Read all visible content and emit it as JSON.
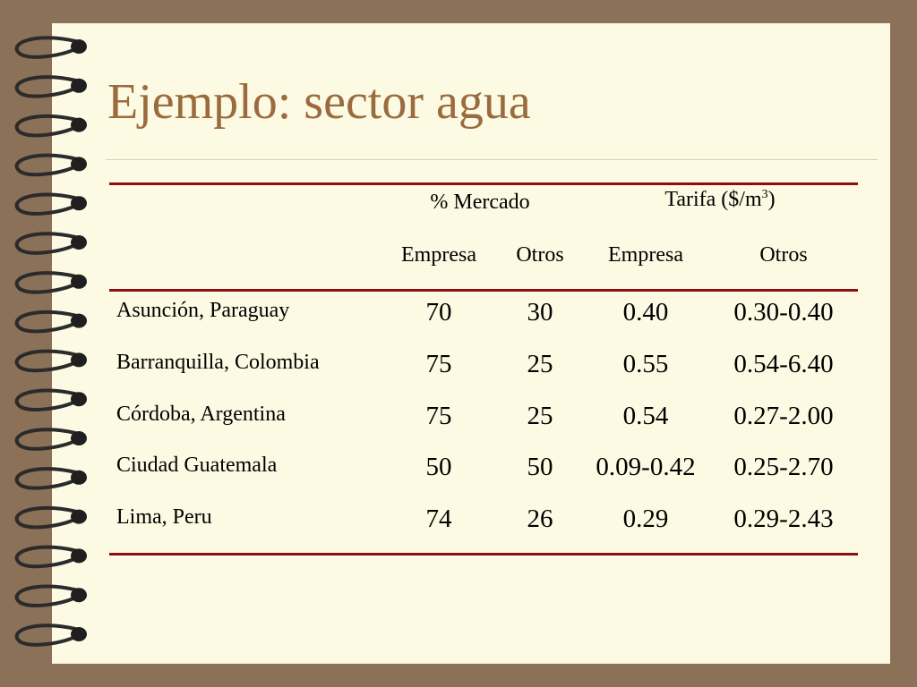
{
  "slide": {
    "title": "Ejemplo: sector agua"
  },
  "table": {
    "group_headers": {
      "market": "% Mercado",
      "tariff": "Tarifa ($/m",
      "tariff_sup": "3",
      "tariff_close": ")"
    },
    "sub_headers": [
      "Empresa",
      "Otros",
      "Empresa",
      "Otros"
    ],
    "rows": [
      {
        "city": "Asunción, Paraguay",
        "values": [
          "70",
          "30",
          "0.40",
          "0.30-0.40"
        ]
      },
      {
        "city": "Barranquilla, Colombia",
        "values": [
          "75",
          "25",
          "0.55",
          "0.54-6.40"
        ]
      },
      {
        "city": "Córdoba, Argentina",
        "values": [
          "75",
          "25",
          "0.54",
          "0.27-2.00"
        ]
      },
      {
        "city": "Ciudad Guatemala",
        "values": [
          "50",
          "50",
          "0.09-0.42",
          "0.25-2.70"
        ]
      },
      {
        "city": "Lima, Peru",
        "values": [
          "74",
          "26",
          "0.29",
          "0.29-2.43"
        ]
      }
    ]
  },
  "colors": {
    "background": "#8b7158",
    "page": "#fcfae3",
    "title": "#9b6b3d",
    "rules": "#8a0f0f"
  }
}
